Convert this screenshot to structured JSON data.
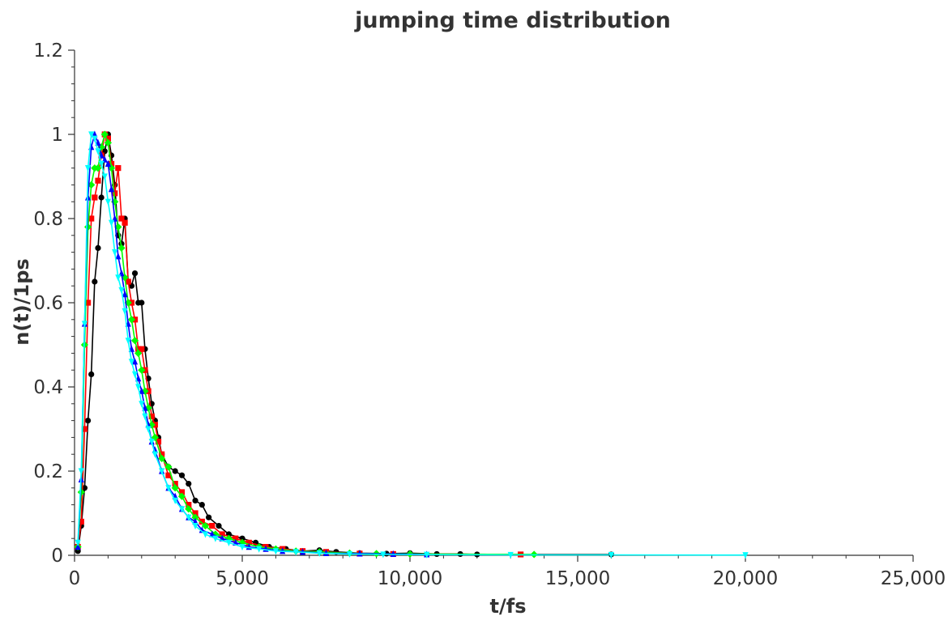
{
  "chart_data": {
    "type": "line",
    "title": "jumping time distribution",
    "xlabel": "t/fs",
    "ylabel": "n(t)/1ps",
    "xlim": [
      0,
      25000
    ],
    "ylim": [
      0,
      1.2
    ],
    "grid": false,
    "legend": "none",
    "x_ticks": [
      {
        "value": 0,
        "label": "0"
      },
      {
        "value": 5000,
        "label": "5,000"
      },
      {
        "value": 10000,
        "label": "10,000"
      },
      {
        "value": 15000,
        "label": "15,000"
      },
      {
        "value": 20000,
        "label": "20,000"
      },
      {
        "value": 25000,
        "label": "25,000"
      }
    ],
    "y_ticks": [
      {
        "value": 0,
        "label": "0"
      },
      {
        "value": 0.2,
        "label": "0.2"
      },
      {
        "value": 0.4,
        "label": "0.4"
      },
      {
        "value": 0.6,
        "label": "0.6"
      },
      {
        "value": 0.8,
        "label": "0.8"
      },
      {
        "value": 1,
        "label": "1"
      },
      {
        "value": 1.2,
        "label": "1.2"
      }
    ],
    "series": [
      {
        "color": "#000000",
        "marker": "circle",
        "x": [
          100,
          200,
          300,
          400,
          500,
          600,
          700,
          800,
          900,
          1000,
          1100,
          1200,
          1300,
          1400,
          1500,
          1600,
          1700,
          1800,
          1900,
          2000,
          2100,
          2200,
          2300,
          2400,
          2500,
          2600,
          2800,
          3000,
          3200,
          3400,
          3600,
          3800,
          4000,
          4300,
          4600,
          5000,
          5400,
          5800,
          6300,
          6800,
          7300,
          7800,
          8500,
          9300,
          10000,
          10800,
          11500,
          12000,
          16000
        ],
        "y": [
          0.01,
          0.07,
          0.16,
          0.32,
          0.43,
          0.65,
          0.73,
          0.85,
          0.96,
          1.0,
          0.95,
          0.88,
          0.76,
          0.74,
          0.8,
          0.65,
          0.64,
          0.67,
          0.6,
          0.6,
          0.49,
          0.42,
          0.36,
          0.32,
          0.28,
          0.24,
          0.21,
          0.2,
          0.19,
          0.17,
          0.13,
          0.12,
          0.09,
          0.07,
          0.05,
          0.04,
          0.03,
          0.02,
          0.015,
          0.01,
          0.012,
          0.008,
          0.005,
          0.004,
          0.005,
          0.003,
          0.003,
          0.002,
          0.002
        ]
      },
      {
        "color": "#ff0000",
        "marker": "square",
        "x": [
          100,
          200,
          300,
          400,
          500,
          600,
          700,
          800,
          900,
          1000,
          1100,
          1200,
          1300,
          1400,
          1500,
          1600,
          1700,
          1800,
          1900,
          2000,
          2100,
          2200,
          2300,
          2400,
          2500,
          2600,
          2800,
          3000,
          3200,
          3400,
          3600,
          3800,
          4100,
          4400,
          4800,
          5200,
          5700,
          6200,
          6800,
          7500,
          8500,
          9500,
          13300
        ],
        "y": [
          0.02,
          0.08,
          0.3,
          0.6,
          0.8,
          0.85,
          0.89,
          0.95,
          1.0,
          0.99,
          0.93,
          0.86,
          0.92,
          0.8,
          0.79,
          0.65,
          0.6,
          0.56,
          0.49,
          0.49,
          0.44,
          0.39,
          0.33,
          0.31,
          0.27,
          0.24,
          0.19,
          0.17,
          0.15,
          0.12,
          0.1,
          0.08,
          0.07,
          0.05,
          0.04,
          0.03,
          0.02,
          0.015,
          0.01,
          0.008,
          0.004,
          0.003,
          0.002
        ]
      },
      {
        "color": "#00ff00",
        "marker": "diamond",
        "x": [
          100,
          200,
          300,
          400,
          500,
          600,
          700,
          800,
          900,
          1000,
          1100,
          1200,
          1300,
          1400,
          1500,
          1600,
          1700,
          1800,
          1900,
          2000,
          2100,
          2200,
          2300,
          2400,
          2600,
          2800,
          3000,
          3200,
          3400,
          3600,
          3900,
          4200,
          4600,
          5000,
          5500,
          6000,
          6600,
          7300,
          8200,
          9000,
          10000,
          13700
        ],
        "y": [
          0.02,
          0.15,
          0.5,
          0.78,
          0.88,
          0.92,
          0.92,
          0.97,
          1.0,
          0.98,
          0.92,
          0.84,
          0.78,
          0.73,
          0.66,
          0.6,
          0.56,
          0.51,
          0.48,
          0.44,
          0.39,
          0.35,
          0.31,
          0.28,
          0.23,
          0.21,
          0.16,
          0.14,
          0.11,
          0.09,
          0.07,
          0.05,
          0.04,
          0.03,
          0.02,
          0.015,
          0.01,
          0.008,
          0.005,
          0.004,
          0.003,
          0.002
        ]
      },
      {
        "color": "#0000ff",
        "marker": "triangle-up",
        "x": [
          100,
          200,
          300,
          400,
          500,
          600,
          700,
          800,
          900,
          1000,
          1100,
          1200,
          1300,
          1400,
          1500,
          1600,
          1700,
          1800,
          1900,
          2000,
          2100,
          2200,
          2300,
          2400,
          2600,
          2800,
          3000,
          3200,
          3400,
          3600,
          3800,
          4100,
          4400,
          4800,
          5200,
          5700,
          6200,
          6800,
          7500,
          8500,
          9500,
          10500
        ],
        "y": [
          0.02,
          0.18,
          0.55,
          0.85,
          0.97,
          1.0,
          0.98,
          0.95,
          0.94,
          0.93,
          0.87,
          0.8,
          0.71,
          0.67,
          0.62,
          0.55,
          0.49,
          0.46,
          0.42,
          0.39,
          0.35,
          0.31,
          0.27,
          0.25,
          0.2,
          0.16,
          0.14,
          0.11,
          0.09,
          0.08,
          0.06,
          0.05,
          0.04,
          0.03,
          0.02,
          0.015,
          0.01,
          0.008,
          0.005,
          0.004,
          0.003,
          0.002
        ]
      },
      {
        "color": "#00ffff",
        "marker": "triangle-down",
        "x": [
          100,
          200,
          300,
          400,
          500,
          600,
          700,
          800,
          900,
          1000,
          1100,
          1200,
          1300,
          1400,
          1500,
          1600,
          1700,
          1800,
          1900,
          2000,
          2100,
          2200,
          2300,
          2400,
          2600,
          2800,
          3000,
          3200,
          3400,
          3600,
          3900,
          4200,
          4600,
          5000,
          5500,
          6000,
          6600,
          7300,
          8200,
          9200,
          10500,
          13000,
          16000,
          20000
        ],
        "y": [
          0.03,
          0.2,
          0.55,
          0.92,
          1.0,
          0.99,
          0.96,
          0.93,
          0.9,
          0.84,
          0.79,
          0.72,
          0.66,
          0.63,
          0.58,
          0.51,
          0.46,
          0.43,
          0.4,
          0.36,
          0.33,
          0.3,
          0.27,
          0.24,
          0.2,
          0.16,
          0.13,
          0.11,
          0.09,
          0.07,
          0.05,
          0.04,
          0.03,
          0.02,
          0.015,
          0.01,
          0.008,
          0.005,
          0.003,
          0.002,
          0.0015,
          0.001,
          0.001,
          0.0005
        ]
      }
    ]
  }
}
